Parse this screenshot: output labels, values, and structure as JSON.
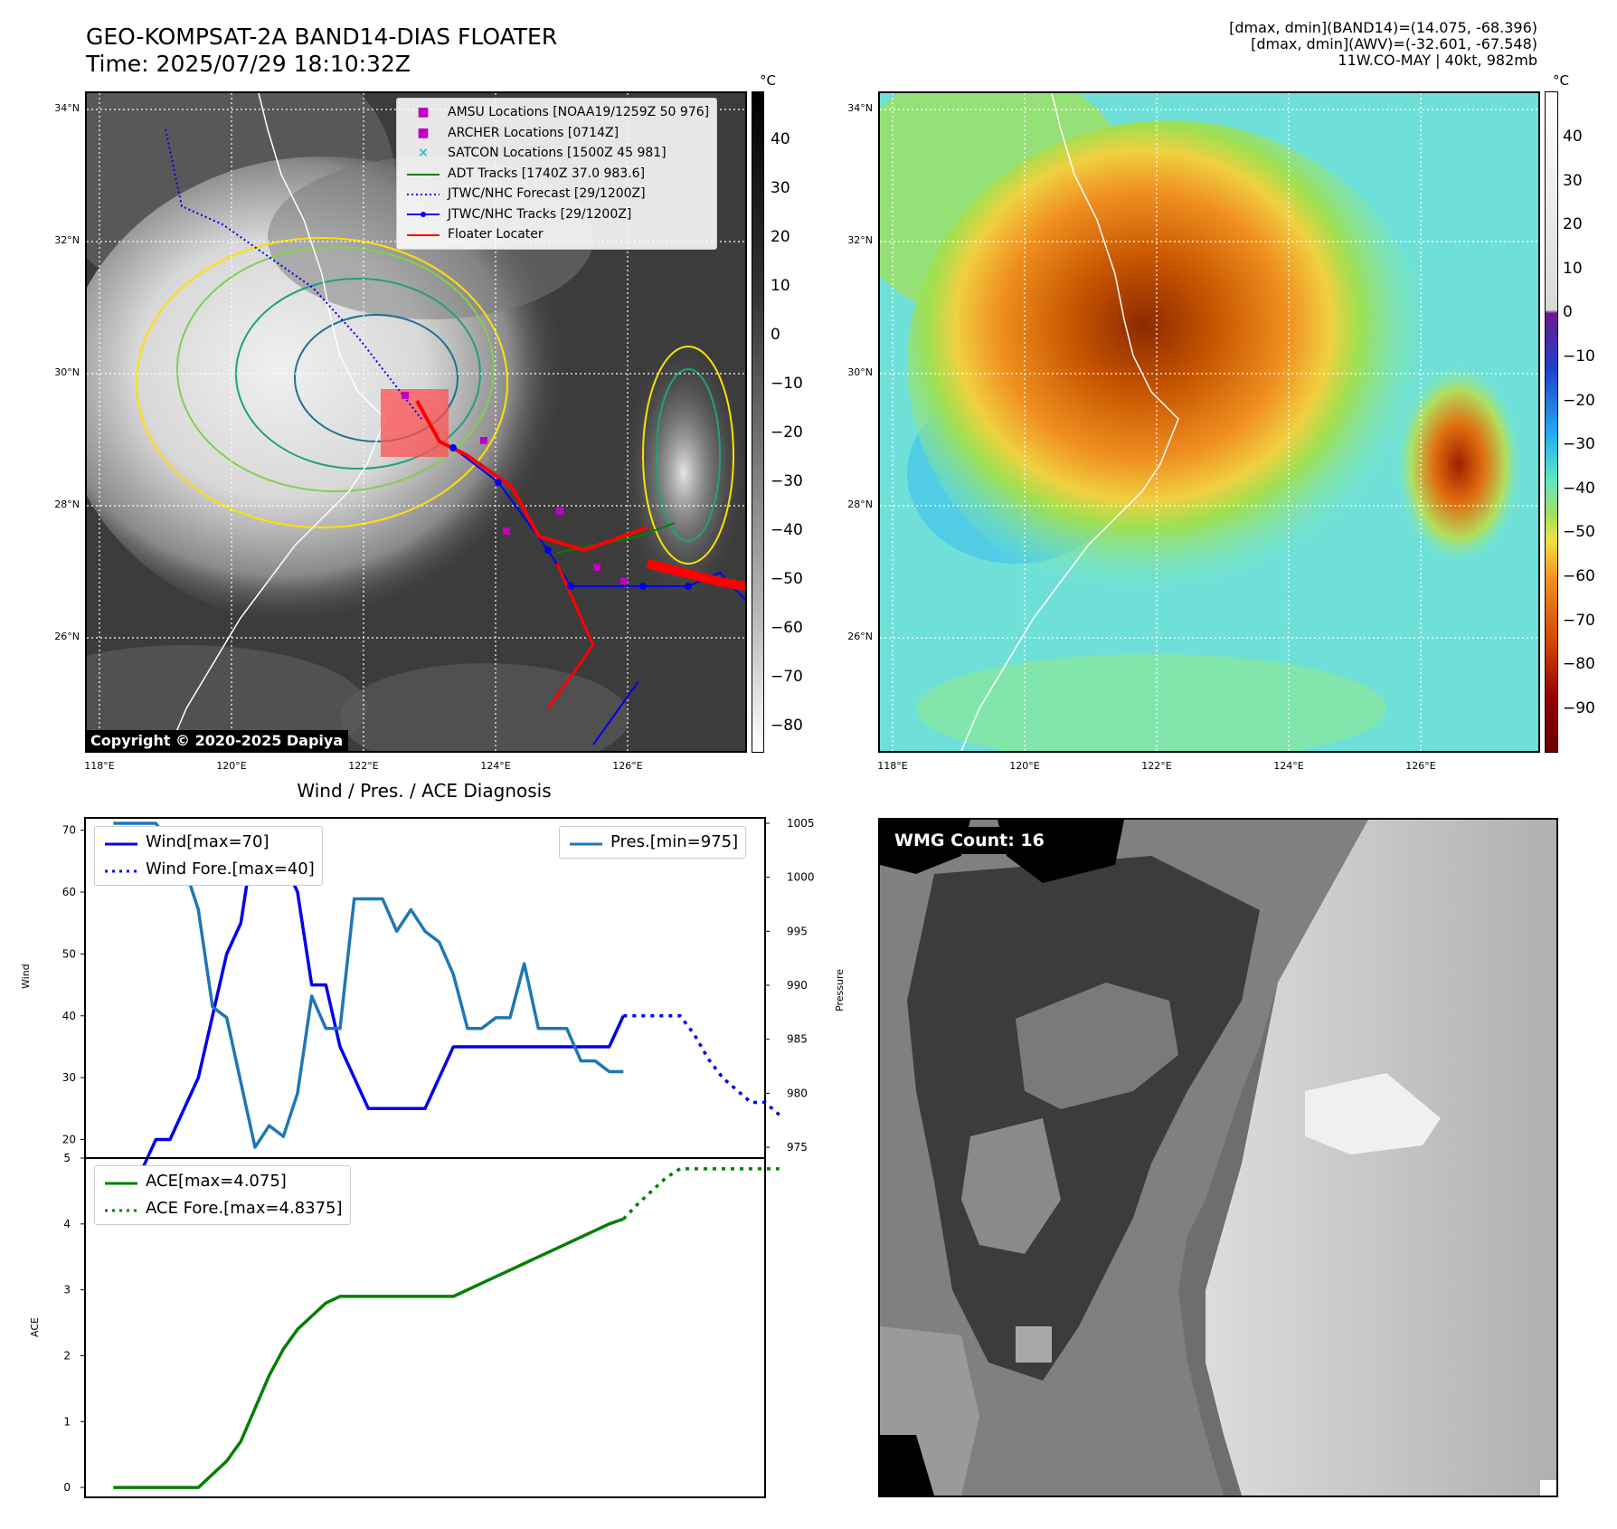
{
  "title": {
    "line1": "GEO-KOMPSAT-2A BAND14-DIAS FLOATER",
    "line2": "Time: 2025/07/29 18:10:32Z"
  },
  "info": {
    "line1": "[dmax, dmin](BAND14)=(14.075, -68.396)",
    "line2": "[dmax, dmin](AWV)=(-32.601, -67.548)",
    "line3": "11W.CO-MAY | 40kt, 982mb"
  },
  "map": {
    "lat_labels": [
      "34°N",
      "32°N",
      "30°N",
      "28°N",
      "26°N"
    ],
    "lon_labels": [
      "118°E",
      "120°E",
      "122°E",
      "124°E",
      "126°E"
    ],
    "copyright": "Copyright © 2020-2025 Dapiya"
  },
  "legend": {
    "amsu": "AMSU Locations [NOAA19/1259Z 50 976]",
    "archer": "ARCHER Locations [0714Z]",
    "satcon": "SATCON Locations [1500Z 45 981]",
    "adt": "ADT Tracks [1740Z 37.0 983.6]",
    "forecast": "JTWC/NHC Forecast [29/1200Z]",
    "tracks": "JTWC/NHC Tracks [29/1200Z]",
    "floater": "Floater Locater",
    "colors": {
      "amsu": "#c000c0",
      "archer": "#c000c0",
      "satcon": "#20c0c0",
      "adt": "#008000",
      "forecast": "#0000ee",
      "tracks": "#0000ee",
      "floater": "#ff0000"
    }
  },
  "colorbar_gray": {
    "unit": "°C",
    "ticks": [
      "40",
      "30",
      "20",
      "10",
      "0",
      "−10",
      "−20",
      "−30",
      "−40",
      "−50",
      "−60",
      "−70",
      "−80"
    ]
  },
  "colorbar_color": {
    "unit": "°C",
    "ticks": [
      "40",
      "30",
      "20",
      "10",
      "0",
      "−10",
      "−20",
      "−30",
      "−40",
      "−50",
      "−60",
      "−70",
      "−80",
      "−90"
    ]
  },
  "wmg": {
    "label": "WMG Count: 16"
  },
  "chart_data": [
    {
      "type": "line",
      "title": "Wind / Pres. / ACE Diagnosis",
      "ylabel": "Wind",
      "y2label": "Pressure",
      "ylim": [
        17,
        72
      ],
      "y2lim": [
        974,
        1005.5
      ],
      "yticks": [
        "20",
        "30",
        "40",
        "50",
        "60",
        "70"
      ],
      "y2ticks": [
        "975",
        "980",
        "985",
        "990",
        "995",
        "1000",
        "1005"
      ],
      "legend_wind": "Wind[max=70]",
      "legend_wind_fore": "Wind Fore.[max=40]",
      "legend_pres": "Pres.[min=975]",
      "series": [
        {
          "name": "Wind[max=70]",
          "color": "#0000ee",
          "style": "solid",
          "axis": "left",
          "x": [
            0,
            2,
            3,
            4,
            6,
            8,
            9,
            10,
            11,
            12,
            13,
            14,
            15,
            16,
            18,
            22,
            24,
            30,
            31,
            32,
            33,
            34,
            35,
            36
          ],
          "values": [
            15,
            15,
            20,
            20,
            30,
            50,
            55,
            70,
            65,
            65,
            60,
            45,
            45,
            35,
            25,
            25,
            35,
            35,
            35,
            35,
            35,
            35,
            35,
            40
          ]
        },
        {
          "name": "Wind Fore.[max=40]",
          "color": "#0000ee",
          "style": "dotted",
          "axis": "left",
          "x": [
            36,
            39,
            40,
            41,
            42,
            43,
            44,
            45,
            46,
            47
          ],
          "values": [
            40,
            40,
            40,
            37,
            33,
            30,
            28,
            26,
            26,
            24
          ]
        },
        {
          "name": "Pres.[min=975]",
          "color": "#1f77b4",
          "style": "solid",
          "axis": "right",
          "x": [
            0,
            3,
            5,
            6,
            7,
            8,
            9,
            10,
            11,
            12,
            13,
            14,
            15,
            16,
            17,
            19,
            20,
            21,
            22,
            23,
            24,
            25,
            26,
            27,
            28,
            29,
            30,
            31,
            32,
            33,
            34,
            35,
            36
          ],
          "values": [
            1005,
            1005,
            1001,
            997,
            988,
            987,
            981,
            975,
            977,
            976,
            980,
            989,
            986,
            986,
            998,
            998,
            995,
            997,
            995,
            994,
            991,
            986,
            986,
            987,
            987,
            992,
            986,
            986,
            986,
            983,
            983,
            982,
            982
          ]
        }
      ]
    },
    {
      "type": "line",
      "ylabel": "ACE",
      "ylim": [
        -0.15,
        5
      ],
      "yticks": [
        "0",
        "1",
        "2",
        "3",
        "4",
        "5"
      ],
      "legend_ace": "ACE[max=4.075]",
      "legend_ace_fore": "ACE Fore.[max=4.8375]",
      "series": [
        {
          "name": "ACE[max=4.075]",
          "color": "#008000",
          "style": "solid",
          "x": [
            0,
            6,
            7,
            8,
            9,
            10,
            11,
            12,
            13,
            14,
            15,
            16,
            17,
            18,
            19,
            20,
            21,
            22,
            23,
            24,
            25,
            26,
            27,
            28,
            29,
            30,
            31,
            32,
            33,
            34,
            35,
            36
          ],
          "values": [
            0,
            0,
            0.2,
            0.4,
            0.7,
            1.2,
            1.7,
            2.1,
            2.4,
            2.6,
            2.8,
            2.9,
            2.9,
            2.9,
            2.9,
            2.9,
            2.9,
            2.9,
            2.9,
            2.9,
            3.0,
            3.1,
            3.2,
            3.3,
            3.4,
            3.5,
            3.6,
            3.7,
            3.8,
            3.9,
            4.0,
            4.075
          ]
        },
        {
          "name": "ACE Fore.[max=4.8375]",
          "color": "#008000",
          "style": "dotted",
          "x": [
            36,
            37,
            38,
            39,
            40,
            41,
            42,
            43,
            44,
            45,
            46,
            47
          ],
          "values": [
            4.075,
            4.3,
            4.5,
            4.7,
            4.8375,
            4.8375,
            4.8375,
            4.8375,
            4.8375,
            4.8375,
            4.8375,
            4.8375
          ]
        }
      ],
      "xlim": [
        -2,
        46
      ]
    }
  ]
}
